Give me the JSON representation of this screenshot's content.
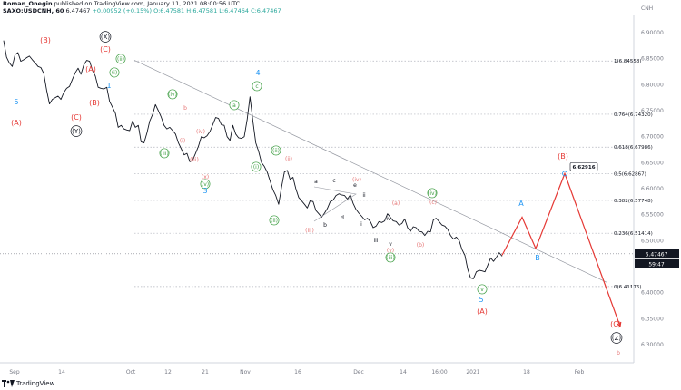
{
  "header": {
    "author": "Roman_Onegin",
    "published": "published on TradingView.com, January 11, 2021 08:00:56 UTC",
    "symbol": "SAXO:USDCNH, 60",
    "last": "6.47467",
    "change": "+0.00952 (+0.15%)",
    "o": "O:6.47581",
    "h": "H:6.47581",
    "l": "L:6.47464",
    "c": "C:6.47467"
  },
  "footer": {
    "brand": "TradingView"
  },
  "colors": {
    "price_line": "#131722",
    "red": "#e53935",
    "green": "#43a047",
    "blue": "#2196f3",
    "salmon": "#e57373",
    "dotted": "#b2b5be",
    "price_tag_bg": "#131722",
    "countdown_bg": "#131722"
  },
  "chart_data": {
    "type": "line",
    "title": "SAXO:USDCNH, 60",
    "currency": "CNH",
    "ylim": [
      6.265,
      6.935
    ],
    "y_ticks": [
      6.3,
      6.35,
      6.4,
      6.45,
      6.5,
      6.55,
      6.6,
      6.65,
      6.7,
      6.75,
      6.8,
      6.85,
      6.9
    ],
    "y_tick_labels": [
      "6.30000",
      "6.35000",
      "6.40000",
      "6.45000",
      "6.50000",
      "6.55000",
      "6.60000",
      "6.65000",
      "6.70000",
      "6.75000",
      "6.80000",
      "6.85000",
      "6.90000"
    ],
    "x_tick_labels": [
      "Sep",
      "14",
      "Oct",
      "12",
      "21",
      "Nov",
      "16",
      "Dec",
      "14",
      "16:00",
      "2021",
      "18",
      "Feb"
    ],
    "current_price": 6.47467,
    "current_price_label": "6.47467",
    "countdown": "59:47",
    "series": [
      {
        "values": [
          6.885,
          6.855,
          6.84,
          6.835,
          6.86,
          6.86,
          6.845,
          6.85,
          6.85,
          6.855,
          6.85,
          6.84,
          6.835,
          6.835,
          6.82,
          6.79,
          6.765,
          6.77,
          6.775,
          6.78,
          6.77,
          6.785,
          6.795,
          6.795,
          6.81,
          6.825,
          6.83,
          6.82,
          6.84,
          6.845,
          6.845,
          6.83,
          6.815,
          6.795,
          6.795,
          6.79,
          6.795,
          6.77,
          6.755,
          6.745,
          6.72,
          6.72,
          6.715,
          6.715,
          6.71,
          6.73,
          6.72,
          6.72,
          6.69,
          6.69,
          6.705,
          6.73,
          6.745,
          6.76,
          6.75,
          6.74,
          6.72,
          6.715,
          6.72,
          6.71,
          6.705,
          6.69,
          6.675,
          6.665,
          6.67,
          6.65,
          6.655,
          6.67,
          6.68,
          6.7,
          6.7,
          6.7,
          6.71,
          6.725,
          6.735,
          6.735,
          6.725,
          6.72,
          6.7,
          6.695,
          6.72,
          6.705,
          6.7,
          6.695,
          6.7,
          6.735,
          6.775,
          6.73,
          6.69,
          6.67,
          6.65,
          6.645,
          6.63,
          6.615,
          6.6,
          6.585,
          6.57,
          6.605,
          6.63,
          6.635,
          6.62,
          6.62,
          6.6,
          6.585,
          6.575,
          6.57,
          6.565,
          6.575,
          6.575,
          6.56,
          6.55,
          6.545,
          6.555,
          6.56,
          6.575,
          6.58,
          6.585,
          6.59,
          6.59,
          6.585,
          6.58,
          6.59,
          6.57,
          6.56,
          6.555,
          6.545,
          6.54,
          6.545,
          6.535,
          6.525,
          6.53,
          6.535,
          6.535,
          6.54,
          6.55,
          6.545,
          6.54,
          6.535,
          6.53,
          6.535,
          6.54,
          6.525,
          6.52,
          6.525,
          6.525,
          6.52,
          6.515,
          6.51,
          6.52,
          6.515,
          6.54,
          6.545,
          6.535,
          6.53,
          6.53,
          6.52,
          6.51,
          6.505,
          6.505,
          6.5,
          6.485,
          6.47,
          6.445,
          6.43,
          6.425,
          6.44,
          6.445,
          6.44,
          6.44,
          6.455,
          6.465,
          6.46,
          6.47,
          6.475,
          6.47
        ]
      }
    ],
    "fib_levels": [
      {
        "ratio": "1",
        "value": 6.84558,
        "label": "1(6.84558)"
      },
      {
        "ratio": "0.764",
        "value": 6.7432,
        "label": "0.764(6.74320)"
      },
      {
        "ratio": "0.618",
        "value": 6.67986,
        "label": "0.618(6.67986)"
      },
      {
        "ratio": "0.5",
        "value": 6.62867,
        "label": "0.5(6.62867)"
      },
      {
        "ratio": "0.382",
        "value": 6.57748,
        "label": "0.382(6.57748)"
      },
      {
        "ratio": "0.236",
        "value": 6.51414,
        "label": "0.236(6.51414)"
      },
      {
        "ratio": "0",
        "value": 6.41176,
        "label": "0(6.41176)"
      }
    ],
    "projection": {
      "points": [
        6.472,
        6.545,
        6.485,
        6.629,
        6.335
      ],
      "target_label": "6.62916"
    },
    "wave_labels": [
      "(B)",
      "(X)",
      "(C)",
      "(A)",
      "5",
      "(A)",
      "(C)",
      "(B)",
      "1",
      "(Y)",
      "(ii)",
      "(i)",
      "(iv)",
      "(iii)",
      "4",
      "c",
      "a",
      "(ii)",
      "(i)",
      "(ii)",
      "(iv)",
      "(iii)",
      "(x)",
      "(v)",
      "3",
      "b",
      "(i)",
      "(ii)",
      "a",
      "c",
      "(iv)",
      "e",
      "ii",
      "d",
      "b",
      "(iii)",
      "iv",
      "iii",
      "i",
      "v",
      "(v)",
      "(iii)",
      "(a)",
      "(iv)",
      "(c)",
      "(b)",
      "A",
      "B",
      "(B)",
      "v",
      "5",
      "(A)",
      "(C)",
      "(Z)",
      "b"
    ]
  }
}
